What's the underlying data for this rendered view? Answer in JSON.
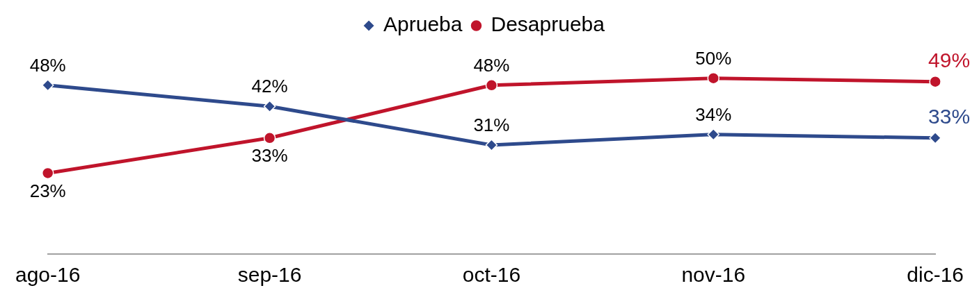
{
  "chart_data": {
    "type": "line",
    "categories": [
      "ago-16",
      "sep-16",
      "oct-16",
      "nov-16",
      "dic-16"
    ],
    "series": [
      {
        "name": "Aprueba",
        "color": "#2e4a8c",
        "marker": "diamond",
        "values": [
          48,
          42,
          31,
          34,
          33
        ],
        "value_labels": [
          "48%",
          "42%",
          "31%",
          "34%",
          "33%"
        ]
      },
      {
        "name": "Desaprueba",
        "color": "#c0142b",
        "marker": "circle",
        "values": [
          23,
          33,
          48,
          50,
          49
        ],
        "value_labels": [
          "23%",
          "33%",
          "48%",
          "50%",
          "49%"
        ]
      }
    ],
    "tick_labels": "x",
    "grid": false,
    "legend": "top",
    "line_style": "solid"
  }
}
